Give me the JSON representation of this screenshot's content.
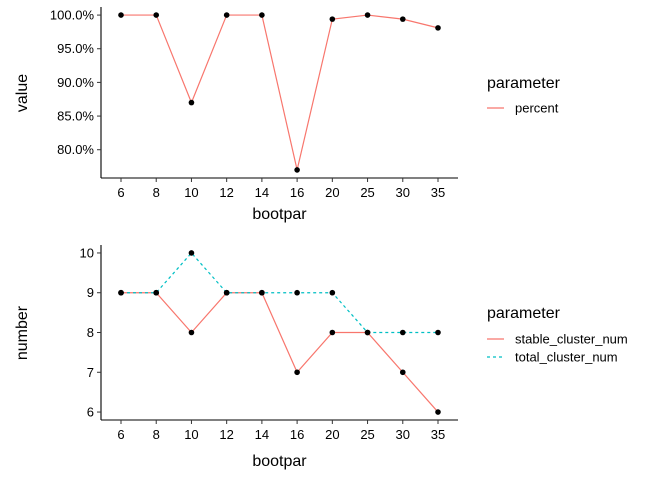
{
  "colors": {
    "stable_cluster_num": "#F8766D",
    "total_cluster_num": "#00BFC4",
    "percent": "#F8766D",
    "points": "#000000"
  },
  "chart_data": [
    {
      "type": "line",
      "name": "top-panel",
      "xlabel": "bootpar",
      "ylabel": "value",
      "categories": [
        "6",
        "8",
        "10",
        "12",
        "14",
        "16",
        "20",
        "25",
        "30",
        "35"
      ],
      "yticks": [
        80,
        85,
        90,
        95,
        100
      ],
      "ytick_labels": [
        "80.0%",
        "85.0%",
        "90.0%",
        "95.0%",
        "100.0%"
      ],
      "ylim": [
        75.8,
        101.2
      ],
      "legend": {
        "title": "parameter",
        "position": "right"
      },
      "series": [
        {
          "name": "percent",
          "line_style": "solid",
          "values": [
            100,
            100,
            87,
            100,
            100,
            77,
            99.4,
            100,
            99.4,
            98.1
          ]
        }
      ]
    },
    {
      "type": "line",
      "name": "bottom-panel",
      "xlabel": "bootpar",
      "ylabel": "number",
      "categories": [
        "6",
        "8",
        "10",
        "12",
        "14",
        "16",
        "20",
        "25",
        "30",
        "35"
      ],
      "yticks": [
        6,
        7,
        8,
        9,
        10
      ],
      "ytick_labels": [
        "6",
        "7",
        "8",
        "9",
        "10"
      ],
      "ylim": [
        5.8,
        10.2
      ],
      "legend": {
        "title": "parameter",
        "position": "right"
      },
      "series": [
        {
          "name": "stable_cluster_num",
          "line_style": "solid",
          "values": [
            9,
            9,
            8,
            9,
            9,
            7,
            8,
            8,
            7,
            6
          ]
        },
        {
          "name": "total_cluster_num",
          "line_style": "dashed",
          "values": [
            9,
            9,
            10,
            9,
            9,
            9,
            9,
            8,
            8,
            8
          ]
        }
      ]
    }
  ]
}
